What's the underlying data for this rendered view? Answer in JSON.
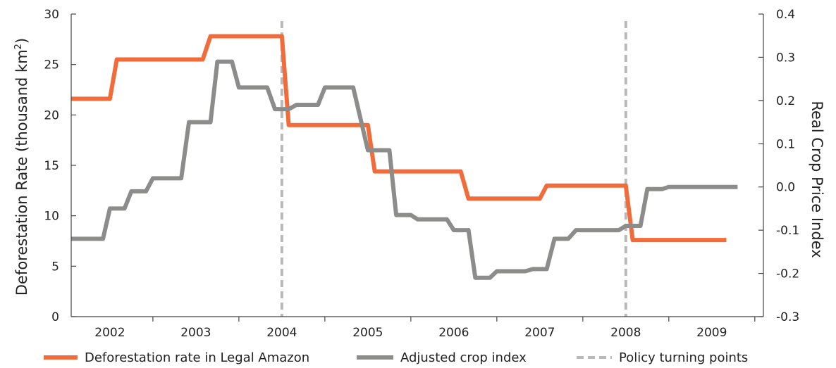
{
  "chart_data": {
    "type": "line",
    "title": "",
    "xlabel": "",
    "ylabel_left": "Deforestation Rate (thousand km",
    "ylabel_left_sup": "2",
    "ylabel_left_close": ")",
    "ylabel_right": "Real Crop Price Index",
    "x_ticks": [
      "2002",
      "2003",
      "2004",
      "2005",
      "2006",
      "2007",
      "2008",
      "2009"
    ],
    "ylim_left": [
      0,
      30
    ],
    "yticks_left": [
      "0",
      "5",
      "10",
      "15",
      "20",
      "25",
      "30"
    ],
    "ylim_right": [
      -0.3,
      0.4
    ],
    "yticks_right": [
      "-0.3",
      "-0.2",
      "-0.1",
      "0.0",
      "0.1",
      "0.2",
      "0.3",
      "0.4"
    ],
    "grid": false,
    "legend_position": "bottom",
    "series": [
      {
        "name": "Deforestation rate in Legal Amazon",
        "axis": "left",
        "color": "#f26b3a",
        "x": [
          2001.55,
          2002.0,
          2002.08,
          2003.08,
          2003.17,
          2004.0,
          2004.08,
          2005.0,
          2005.08,
          2006.08,
          2006.17,
          2007.0,
          2007.08,
          2008.0,
          2008.08,
          2009.17
        ],
        "y": [
          21.6,
          21.6,
          25.5,
          25.5,
          27.8,
          27.8,
          19.0,
          19.0,
          14.4,
          14.4,
          11.7,
          11.7,
          13.0,
          13.0,
          7.6,
          7.6
        ]
      },
      {
        "name": "Adjusted crop index",
        "axis": "right",
        "color": "#8c8c8a",
        "x": [
          2001.55,
          2001.92,
          2002.0,
          2002.17,
          2002.25,
          2002.42,
          2002.5,
          2002.58,
          2002.67,
          2002.83,
          2002.92,
          2003.17,
          2003.25,
          2003.33,
          2003.42,
          2003.5,
          2003.58,
          2003.83,
          2003.92,
          2004.08,
          2004.17,
          2004.42,
          2004.5,
          2004.75,
          2004.83,
          2005.0,
          2005.08,
          2005.25,
          2005.33,
          2005.5,
          2005.58,
          2005.92,
          2006.0,
          2006.17,
          2006.25,
          2006.42,
          2006.5,
          2006.83,
          2006.92,
          2007.08,
          2007.17,
          2007.33,
          2007.42,
          2007.5,
          2007.58,
          2007.92,
          2008.0,
          2008.17,
          2008.25,
          2008.42,
          2008.5,
          2008.58,
          2008.67,
          2009.3
        ],
        "y": [
          -0.12,
          -0.12,
          -0.05,
          -0.05,
          -0.01,
          -0.01,
          0.02,
          0.02,
          0.02,
          0.02,
          0.15,
          0.15,
          0.29,
          0.29,
          0.29,
          0.23,
          0.23,
          0.23,
          0.18,
          0.18,
          0.19,
          0.19,
          0.23,
          0.23,
          0.23,
          0.085,
          0.085,
          0.085,
          -0.065,
          -0.065,
          -0.075,
          -0.075,
          -0.1,
          -0.1,
          -0.21,
          -0.21,
          -0.195,
          -0.195,
          -0.19,
          -0.19,
          -0.12,
          -0.12,
          -0.1,
          -0.1,
          -0.1,
          -0.1,
          -0.09,
          -0.09,
          -0.005,
          -0.005,
          0.0,
          0.0,
          0.0,
          0.0
        ]
      },
      {
        "name": "Policy turning points",
        "type": "vline",
        "color": "#b9b9b9",
        "x": [
          2004.0,
          2008.0
        ]
      }
    ]
  }
}
